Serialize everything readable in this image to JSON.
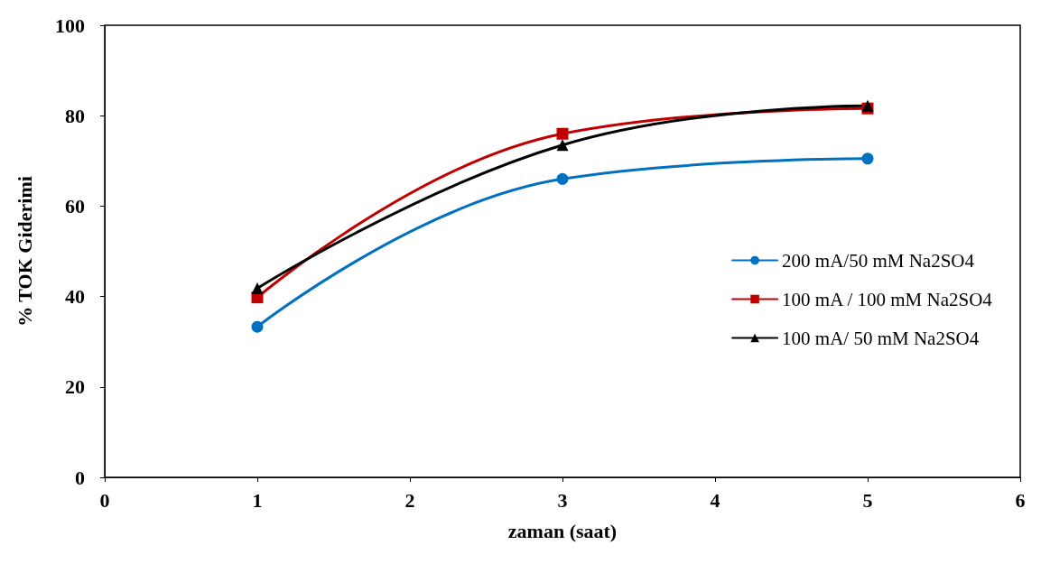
{
  "chart_data": {
    "type": "line",
    "xlabel": "zaman (saat)",
    "ylabel": "% TOK Giderimi",
    "x": [
      1,
      3,
      5
    ],
    "series": [
      {
        "name": "200 mA/50 mM Na2SO4",
        "color": "#0070c0",
        "values": [
          33.3,
          66,
          70.5
        ],
        "marker": "circle"
      },
      {
        "name": "100 mA / 100 mM Na2SO4",
        "color": "#c00000",
        "values": [
          39.8,
          76,
          81.6
        ],
        "marker": "square"
      },
      {
        "name": "100 mA/ 50 mM Na2SO4",
        "color": "#000000",
        "values": [
          41.8,
          73.5,
          82.2
        ],
        "marker": "triangle"
      }
    ],
    "xlim": [
      0,
      6
    ],
    "xticks": [
      0,
      1,
      2,
      3,
      4,
      5,
      6
    ],
    "ylim": [
      0,
      100
    ],
    "yticks": [
      0,
      20,
      40,
      60,
      80,
      100
    ],
    "grid": false,
    "legend": "right",
    "line_style": "solid"
  }
}
